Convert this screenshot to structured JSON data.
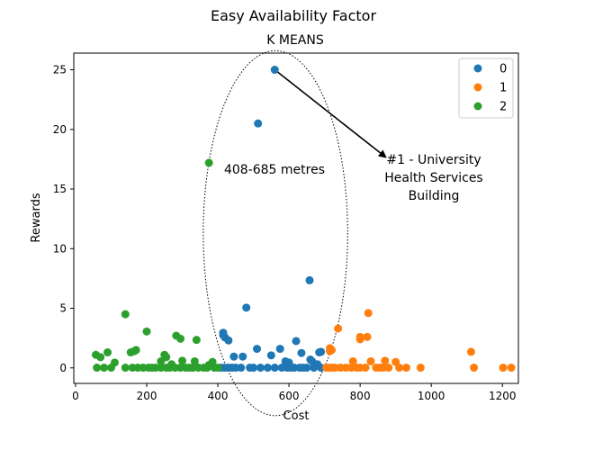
{
  "figure_title": "Easy Availability Factor",
  "chart_data": {
    "type": "scatter",
    "title": "K MEANS",
    "xlabel": "Cost",
    "ylabel": "Rewards",
    "xlim": [
      -5,
      1245
    ],
    "ylim": [
      -1.3,
      26.4
    ],
    "xticks": [
      0,
      200,
      400,
      600,
      800,
      1000,
      1200
    ],
    "yticks": [
      0,
      5,
      10,
      15,
      20,
      25
    ],
    "grid": false,
    "legend_position": "top-right",
    "series": [
      {
        "name": "0",
        "color": "#1f77b4",
        "points": [
          [
            560,
            25.0
          ],
          [
            513,
            20.5
          ],
          [
            658,
            7.35
          ],
          [
            480,
            5.05
          ],
          [
            415,
            2.95
          ],
          [
            415,
            2.75
          ],
          [
            420,
            2.55
          ],
          [
            430,
            2.3
          ],
          [
            445,
            0.95
          ],
          [
            470,
            0.95
          ],
          [
            510,
            1.6
          ],
          [
            575,
            1.6
          ],
          [
            550,
            1.05
          ],
          [
            620,
            2.25
          ],
          [
            635,
            1.25
          ],
          [
            685,
            1.3
          ],
          [
            690,
            1.35
          ],
          [
            590,
            0.55
          ],
          [
            600,
            0.45
          ],
          [
            660,
            0.7
          ],
          [
            665,
            0.55
          ],
          [
            680,
            0.3
          ],
          [
            410,
            0.02
          ],
          [
            420,
            0.02
          ],
          [
            430,
            0.02
          ],
          [
            440,
            0.02
          ],
          [
            450,
            0.02
          ],
          [
            465,
            0.02
          ],
          [
            490,
            0.02
          ],
          [
            500,
            0.02
          ],
          [
            520,
            0.02
          ],
          [
            540,
            0.02
          ],
          [
            560,
            0.02
          ],
          [
            580,
            0.02
          ],
          [
            595,
            0.02
          ],
          [
            605,
            0.02
          ],
          [
            615,
            0.02
          ],
          [
            630,
            0.02
          ],
          [
            640,
            0.02
          ],
          [
            650,
            0.02
          ],
          [
            670,
            0.02
          ],
          [
            690,
            0.02
          ]
        ]
      },
      {
        "name": "1",
        "color": "#ff7f0e",
        "points": [
          [
            823,
            4.6
          ],
          [
            738,
            3.3
          ],
          [
            800,
            2.6
          ],
          [
            800,
            2.4
          ],
          [
            820,
            2.6
          ],
          [
            715,
            1.65
          ],
          [
            715,
            1.4
          ],
          [
            720,
            1.5
          ],
          [
            1112,
            1.35
          ],
          [
            780,
            0.55
          ],
          [
            830,
            0.55
          ],
          [
            870,
            0.6
          ],
          [
            900,
            0.5
          ],
          [
            705,
            0.02
          ],
          [
            712,
            0.02
          ],
          [
            720,
            0.02
          ],
          [
            730,
            0.02
          ],
          [
            745,
            0.02
          ],
          [
            760,
            0.02
          ],
          [
            775,
            0.02
          ],
          [
            790,
            0.02
          ],
          [
            800,
            0.02
          ],
          [
            815,
            0.02
          ],
          [
            845,
            0.02
          ],
          [
            855,
            0.02
          ],
          [
            865,
            0.02
          ],
          [
            880,
            0.02
          ],
          [
            910,
            0.02
          ],
          [
            930,
            0.02
          ],
          [
            970,
            0.02
          ],
          [
            1120,
            0.02
          ],
          [
            1202,
            0.02
          ],
          [
            1225,
            0.02
          ]
        ]
      },
      {
        "name": "2",
        "color": "#2ca02c",
        "points": [
          [
            375,
            17.2
          ],
          [
            140,
            4.5
          ],
          [
            200,
            3.05
          ],
          [
            283,
            2.7
          ],
          [
            295,
            2.45
          ],
          [
            340,
            2.35
          ],
          [
            155,
            1.3
          ],
          [
            170,
            1.5
          ],
          [
            165,
            1.4
          ],
          [
            90,
            1.3
          ],
          [
            57,
            1.1
          ],
          [
            70,
            0.9
          ],
          [
            250,
            1.1
          ],
          [
            255,
            0.9
          ],
          [
            300,
            0.6
          ],
          [
            335,
            0.55
          ],
          [
            385,
            0.5
          ],
          [
            240,
            0.55
          ],
          [
            270,
            0.3
          ],
          [
            110,
            0.45
          ],
          [
            375,
            0.25
          ],
          [
            60,
            0.02
          ],
          [
            80,
            0.02
          ],
          [
            100,
            0.02
          ],
          [
            140,
            0.02
          ],
          [
            160,
            0.02
          ],
          [
            175,
            0.02
          ],
          [
            190,
            0.02
          ],
          [
            205,
            0.02
          ],
          [
            215,
            0.02
          ],
          [
            225,
            0.02
          ],
          [
            240,
            0.02
          ],
          [
            255,
            0.02
          ],
          [
            265,
            0.02
          ],
          [
            280,
            0.02
          ],
          [
            295,
            0.02
          ],
          [
            310,
            0.02
          ],
          [
            320,
            0.02
          ],
          [
            330,
            0.02
          ],
          [
            345,
            0.02
          ],
          [
            360,
            0.02
          ],
          [
            370,
            0.02
          ],
          [
            390,
            0.02
          ],
          [
            400,
            0.02
          ]
        ]
      }
    ],
    "annotations": {
      "range_label": "408-685 metres",
      "callout_lines": [
        "#1 - University",
        "Health Services",
        "Building"
      ],
      "ellipse": {
        "center": [
          562,
          11.3
        ],
        "x_radius": 203,
        "y_radius": 15.3
      },
      "arrow_from": [
        560,
        25.0
      ],
      "arrow_to": [
        875,
        17.6
      ]
    }
  }
}
